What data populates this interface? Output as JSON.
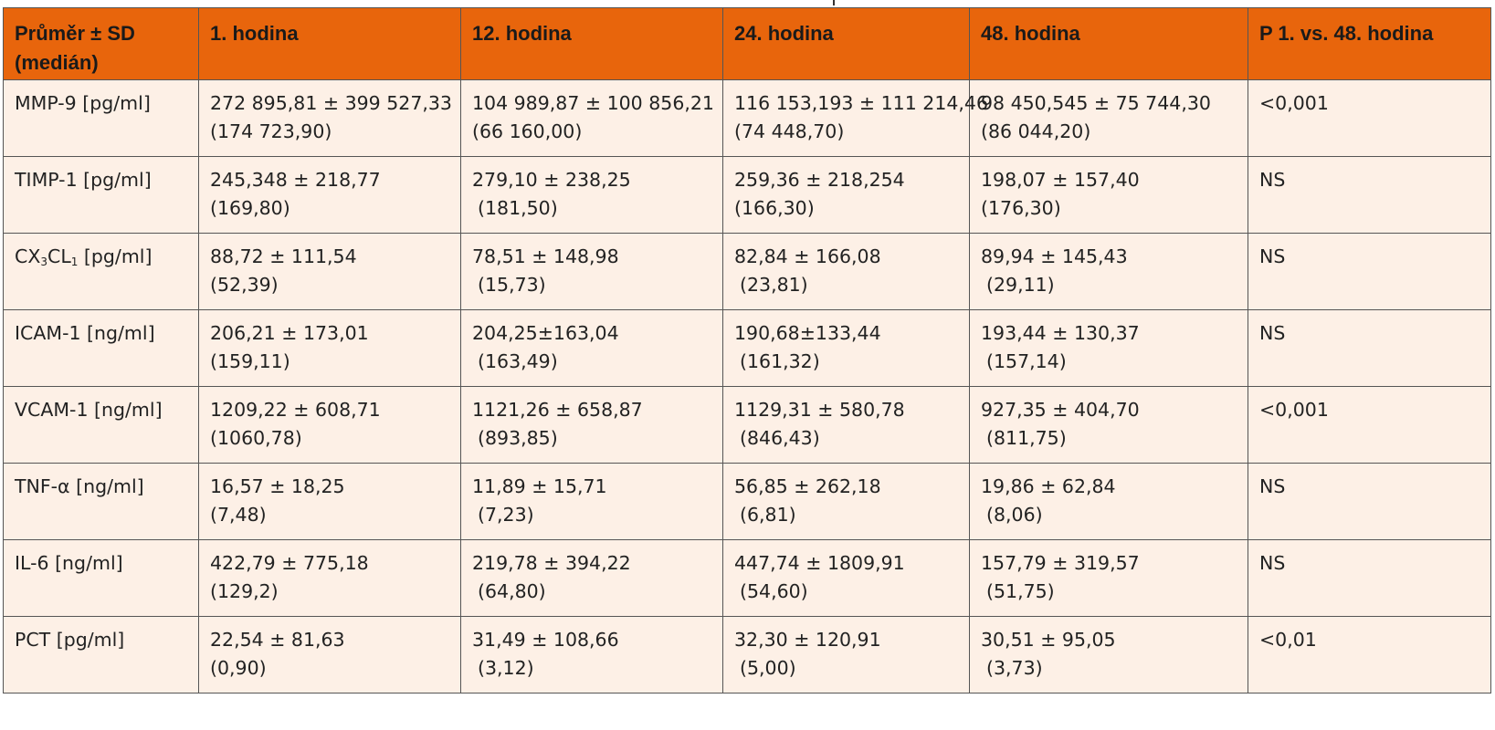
{
  "header": {
    "col0_line1": "Průměr ± SD",
    "col0_line2": "(medián)",
    "col1": "1. hodina",
    "col2": "12. hodina",
    "col3": "24. hodina",
    "col4": "48. hodina",
    "col5": "P 1. vs. 48. hodina"
  },
  "rows": [
    {
      "label": "MMP-9 [pg/ml]",
      "h1": {
        "mean": "272 895,81 ± 399 527,33",
        "median": "(174 723,90)"
      },
      "h12": {
        "mean": "104 989,87 ± 100 856,21",
        "median": "(66 160,00)"
      },
      "h24": {
        "mean": "116 153,193 ± 111 214,46",
        "median": "(74 448,70)"
      },
      "h48": {
        "mean": "98 450,545 ± 75 744,30",
        "median": "(86 044,20)"
      },
      "p": "<0,001"
    },
    {
      "label": "TIMP-1 [pg/ml]",
      "h1": {
        "mean": "245,348 ± 218,77",
        "median": "(169,80)"
      },
      "h12": {
        "mean": "279,10 ± 238,25",
        "median": "(181,50)"
      },
      "h24": {
        "mean": "259,36 ± 218,254",
        "median": "(166,30)"
      },
      "h48": {
        "mean": "198,07 ± 157,40",
        "median": "(176,30)"
      },
      "p": "NS"
    },
    {
      "label_main": "CX",
      "label_sub1": "3",
      "label_mid": "CL",
      "label_sub2": "1",
      "label_unit": " [pg/ml]",
      "h1": {
        "mean": "88,72 ± 111,54",
        "median": "(52,39)"
      },
      "h12": {
        "mean": "78,51 ± 148,98",
        "median": "(15,73)"
      },
      "h24": {
        "mean": "82,84 ± 166,08",
        "median": "(23,81)"
      },
      "h48": {
        "mean": "89,94 ± 145,43",
        "median": "(29,11)"
      },
      "p": "NS"
    },
    {
      "label": "ICAM-1 [ng/ml]",
      "h1": {
        "mean": "206,21 ± 173,01",
        "median": "(159,11)"
      },
      "h12": {
        "mean": "204,25±163,04",
        "median": "(163,49)"
      },
      "h24": {
        "mean": "190,68±133,44",
        "median": "(161,32)"
      },
      "h48": {
        "mean": "193,44 ± 130,37",
        "median": "(157,14)"
      },
      "p": "NS"
    },
    {
      "label": "VCAM-1 [ng/ml]",
      "h1": {
        "mean": "1209,22 ± 608,71",
        "median": "(1060,78)"
      },
      "h12": {
        "mean": "1121,26 ± 658,87",
        "median": "(893,85)"
      },
      "h24": {
        "mean": "1129,31 ± 580,78",
        "median": "(846,43)"
      },
      "h48": {
        "mean": "927,35 ± 404,70",
        "median": "(811,75)"
      },
      "p": "<0,001"
    },
    {
      "label": "TNF-α [ng/ml]",
      "h1": {
        "mean": "16,57 ± 18,25",
        "median": "(7,48)"
      },
      "h12": {
        "mean": "11,89 ± 15,71",
        "median": "(7,23)"
      },
      "h24": {
        "mean": "56,85 ± 262,18",
        "median": "(6,81)"
      },
      "h48": {
        "mean": "19,86 ± 62,84",
        "median": "(8,06)"
      },
      "p": "NS"
    },
    {
      "label": "IL-6 [ng/ml]",
      "h1": {
        "mean": "422,79 ± 775,18",
        "median": "(129,2)"
      },
      "h12": {
        "mean": "219,78 ± 394,22",
        "median": "(64,80)"
      },
      "h24": {
        "mean": "447,74 ± 1809,91",
        "median": "(54,60)"
      },
      "h48": {
        "mean": "157,79 ± 319,57",
        "median": "(51,75)"
      },
      "p": "NS"
    },
    {
      "label": "PCT [pg/ml]",
      "h1": {
        "mean": "22,54 ± 81,63",
        "median": "(0,90)"
      },
      "h12": {
        "mean": "31,49 ± 108,66",
        "median": "(3,12)"
      },
      "h24": {
        "mean": "32,30 ± 120,91",
        "median": "(5,00)"
      },
      "h48": {
        "mean": "30,51 ± 95,05",
        "median": "(3,73)"
      },
      "p": "<0,01"
    }
  ],
  "colors": {
    "header_bg": "#e8650c",
    "body_bg": "#fdf0e6",
    "border": "#555555"
  }
}
